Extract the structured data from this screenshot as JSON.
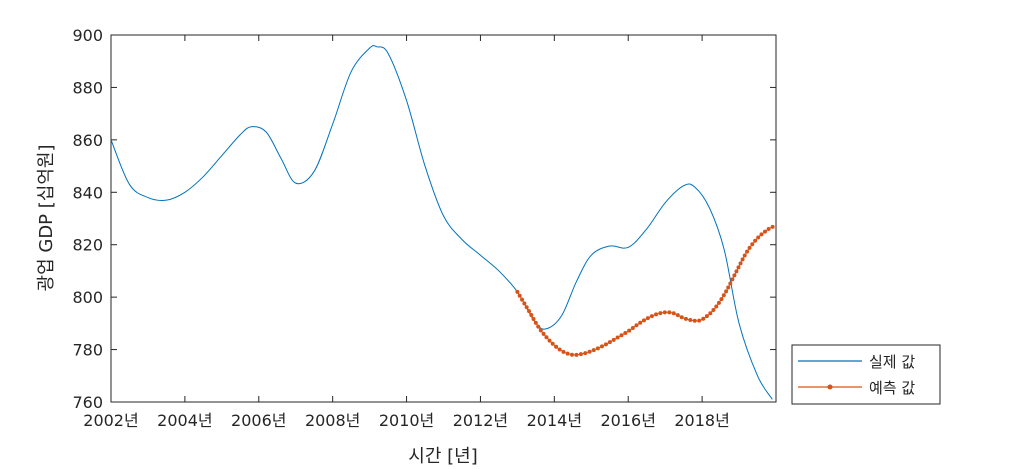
{
  "chart_data": {
    "type": "line",
    "title": "",
    "xlabel": "시간 [년]",
    "ylabel": "광업 GDP [십억원]",
    "xlim": [
      2002,
      2020
    ],
    "ylim": [
      760,
      900
    ],
    "x_ticks": [
      2002,
      2004,
      2006,
      2008,
      2010,
      2012,
      2014,
      2016,
      2018
    ],
    "x_tick_labels": [
      "2002년",
      "2004년",
      "2006년",
      "2008년",
      "2010년",
      "2012년",
      "2014년",
      "2016년",
      "2018년"
    ],
    "y_ticks": [
      760,
      780,
      800,
      820,
      840,
      860,
      880,
      900
    ],
    "y_tick_labels": [
      "760",
      "780",
      "800",
      "820",
      "840",
      "860",
      "880",
      "900"
    ],
    "grid": false,
    "legend_position": "outside-bottom-right",
    "series": [
      {
        "name": "실제 값",
        "color": "#0072BD",
        "marker": "none",
        "x": [
          2002,
          2002.5,
          2003,
          2003.5,
          2004,
          2004.5,
          2005,
          2005.5,
          2005.8,
          2006.2,
          2006.6,
          2007,
          2007.5,
          2008,
          2008.5,
          2009,
          2009.2,
          2009.5,
          2010,
          2010.5,
          2011,
          2011.5,
          2012,
          2012.5,
          2013,
          2013.5,
          2013.8,
          2014.2,
          2014.6,
          2015,
          2015.5,
          2016,
          2016.5,
          2017,
          2017.5,
          2017.8,
          2018.2,
          2018.6,
          2019,
          2019.5,
          2019.9
        ],
        "y": [
          860,
          843,
          838,
          837,
          840,
          846,
          854,
          862,
          865,
          863,
          853,
          843.5,
          848,
          866,
          886,
          895,
          895.5,
          893,
          875,
          850,
          831,
          822,
          816,
          810,
          802,
          790,
          788,
          793,
          806,
          816,
          819.5,
          819,
          826,
          836,
          842.5,
          842,
          834,
          818,
          790,
          770,
          761
        ]
      },
      {
        "name": "예측 값",
        "color": "#D95319",
        "marker": "dot",
        "x": [
          2013,
          2013.3,
          2013.6,
          2013.9,
          2014.2,
          2014.5,
          2014.8,
          2015.1,
          2015.4,
          2015.7,
          2016,
          2016.3,
          2016.6,
          2016.9,
          2017.2,
          2017.5,
          2017.8,
          2018,
          2018.3,
          2018.6,
          2018.9,
          2019.2,
          2019.5,
          2019.8,
          2019.95
        ],
        "y": [
          802,
          795,
          788,
          783,
          779.5,
          778,
          778.5,
          780,
          782,
          784.5,
          787,
          790,
          792.5,
          794,
          794,
          792,
          791,
          791.5,
          795,
          801,
          809,
          817,
          822.5,
          826,
          827
        ]
      }
    ]
  }
}
